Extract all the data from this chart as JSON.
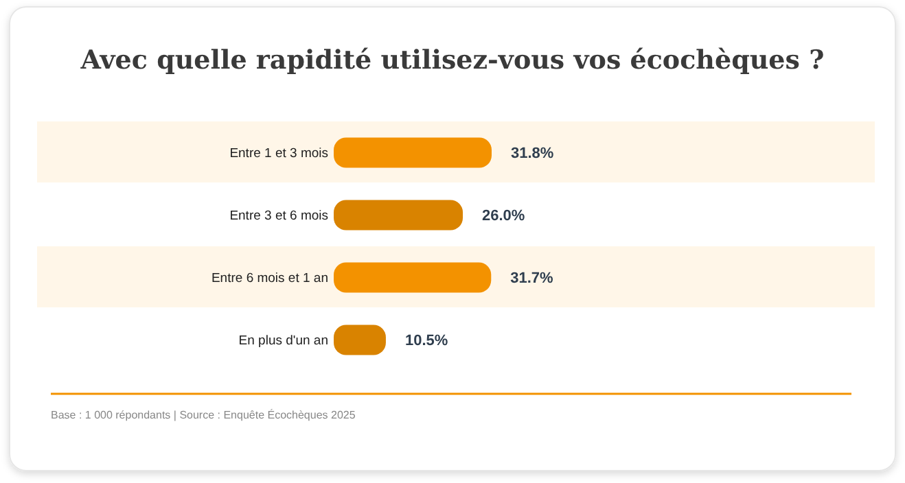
{
  "chart_data": {
    "type": "bar",
    "orientation": "horizontal",
    "title": "Avec quelle rapidité utilisez-vous vos écochèques ?",
    "categories": [
      "Entre 1 et 3 mois",
      "Entre 3 et 6 mois",
      "Entre 6 mois et 1 an",
      "En plus d'un an"
    ],
    "values": [
      31.8,
      26.0,
      31.7,
      10.5
    ],
    "colors": [
      "#f39200",
      "#d98300",
      "#f39200",
      "#d98300"
    ],
    "value_labels": [
      "31.8%",
      "26.0%",
      "31.7%",
      "10.5%"
    ],
    "annotations": [
      "Base : 1 000 répondants  |  Source : Enquête Écochèques 2025"
    ]
  }
}
